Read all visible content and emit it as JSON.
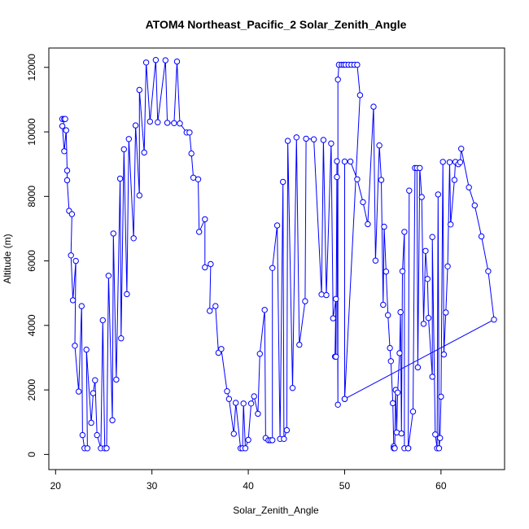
{
  "chart_data": {
    "type": "line",
    "title": "ATOM4 Northeast_Pacific_2 Solar_Zenith_Angle",
    "xlabel": "Solar_Zenith_Angle",
    "ylabel": "Altitude (m)",
    "xlim": [
      19.3,
      66.6
    ],
    "ylim": [
      -470,
      12600
    ],
    "xticks": [
      20,
      30,
      40,
      50,
      60
    ],
    "yticks": [
      0,
      2000,
      4000,
      6000,
      8000,
      10000,
      12000
    ],
    "markers": "open circles",
    "color": "#0000ff",
    "grid": false,
    "series": [
      {
        "points": [
          [
            20.7,
            10400
          ],
          [
            20.9,
            10400
          ],
          [
            21.0,
            10400
          ],
          [
            20.7,
            10180
          ],
          [
            20.9,
            9400
          ],
          [
            21.1,
            10050
          ],
          [
            21.2,
            8800
          ],
          [
            21.2,
            8500
          ],
          [
            21.4,
            7550
          ],
          [
            21.7,
            7450
          ],
          [
            21.6,
            6170
          ],
          [
            21.8,
            4780
          ],
          [
            22.1,
            6000
          ],
          [
            22.0,
            3370
          ],
          [
            22.4,
            1950
          ],
          [
            22.7,
            4600
          ],
          [
            22.8,
            600
          ],
          [
            23.0,
            190
          ],
          [
            23.3,
            190
          ],
          [
            23.2,
            3250
          ],
          [
            23.7,
            980
          ],
          [
            23.9,
            1900
          ],
          [
            24.1,
            2300
          ],
          [
            24.3,
            600
          ],
          [
            24.7,
            190
          ],
          [
            24.9,
            4160
          ],
          [
            25.1,
            190
          ],
          [
            25.3,
            190
          ],
          [
            25.5,
            5540
          ],
          [
            25.9,
            1060
          ],
          [
            26.0,
            6850
          ],
          [
            26.3,
            2320
          ],
          [
            26.7,
            8550
          ],
          [
            26.8,
            3600
          ],
          [
            27.1,
            9460
          ],
          [
            27.4,
            4970
          ],
          [
            27.6,
            9780
          ],
          [
            28.1,
            6700
          ],
          [
            28.3,
            10200
          ],
          [
            28.7,
            8030
          ],
          [
            28.7,
            11300
          ],
          [
            29.2,
            9360
          ],
          [
            29.4,
            12150
          ],
          [
            29.8,
            10320
          ],
          [
            30.4,
            12230
          ],
          [
            30.6,
            10300
          ],
          [
            31.4,
            12220
          ],
          [
            31.6,
            10280
          ],
          [
            32.3,
            10270
          ],
          [
            32.6,
            12180
          ],
          [
            32.9,
            10260
          ],
          [
            33.6,
            9980
          ],
          [
            33.9,
            9980
          ],
          [
            34.1,
            9330
          ],
          [
            34.3,
            8580
          ],
          [
            34.8,
            8530
          ],
          [
            34.9,
            6900
          ],
          [
            35.5,
            7290
          ],
          [
            35.5,
            5800
          ],
          [
            36.1,
            5900
          ],
          [
            36.0,
            4450
          ],
          [
            36.6,
            4600
          ],
          [
            36.9,
            3150
          ],
          [
            37.2,
            3270
          ],
          [
            37.8,
            1960
          ],
          [
            38.0,
            1720
          ],
          [
            38.5,
            640
          ],
          [
            38.7,
            1600
          ],
          [
            39.2,
            190
          ],
          [
            39.4,
            190
          ],
          [
            39.5,
            1580
          ],
          [
            39.7,
            190
          ],
          [
            40.0,
            450
          ],
          [
            40.3,
            1580
          ],
          [
            40.6,
            1800
          ],
          [
            41.0,
            1260
          ],
          [
            41.2,
            3120
          ],
          [
            41.7,
            4480
          ],
          [
            41.8,
            510
          ],
          [
            42.1,
            440
          ],
          [
            42.3,
            440
          ],
          [
            42.5,
            440
          ],
          [
            42.5,
            5780
          ],
          [
            43.0,
            7100
          ],
          [
            43.3,
            480
          ],
          [
            43.6,
            8450
          ],
          [
            43.7,
            480
          ],
          [
            44.0,
            750
          ],
          [
            44.1,
            9720
          ],
          [
            44.6,
            2060
          ],
          [
            45.0,
            9830
          ],
          [
            45.3,
            3400
          ],
          [
            45.9,
            4750
          ],
          [
            46.0,
            9790
          ],
          [
            46.8,
            9770
          ],
          [
            47.6,
            4960
          ],
          [
            47.8,
            9750
          ],
          [
            48.1,
            4940
          ],
          [
            48.6,
            9640
          ],
          [
            48.8,
            4220
          ],
          [
            49.1,
            4820
          ],
          [
            49.0,
            3030
          ],
          [
            49.1,
            3030
          ],
          [
            49.2,
            9090
          ],
          [
            49.2,
            8600
          ],
          [
            49.3,
            1540
          ],
          [
            49.3,
            11620
          ],
          [
            49.4,
            12080
          ],
          [
            49.7,
            12080
          ],
          [
            49.9,
            12080
          ],
          [
            50.1,
            12080
          ],
          [
            50.4,
            12080
          ],
          [
            50.7,
            12080
          ],
          [
            51.0,
            12080
          ],
          [
            51.3,
            12080
          ],
          [
            51.6,
            11140
          ],
          [
            50.0,
            1720
          ],
          [
            50.0,
            9080
          ],
          [
            50.6,
            9080
          ],
          [
            51.3,
            8530
          ],
          [
            51.9,
            7820
          ],
          [
            52.4,
            7140
          ],
          [
            53.0,
            10780
          ],
          [
            53.2,
            6010
          ],
          [
            53.6,
            9580
          ],
          [
            53.8,
            8510
          ],
          [
            54.0,
            4640
          ],
          [
            54.1,
            7060
          ],
          [
            54.3,
            5670
          ],
          [
            54.5,
            4320
          ],
          [
            54.7,
            3300
          ],
          [
            54.8,
            2890
          ],
          [
            55.0,
            1590
          ],
          [
            55.1,
            250
          ],
          [
            55.1,
            190
          ],
          [
            55.2,
            190
          ],
          [
            55.3,
            2000
          ],
          [
            55.4,
            680
          ],
          [
            55.5,
            1920
          ],
          [
            55.7,
            3140
          ],
          [
            55.8,
            4410
          ],
          [
            55.9,
            650
          ],
          [
            56.0,
            5680
          ],
          [
            56.2,
            6900
          ],
          [
            56.2,
            190
          ],
          [
            56.6,
            190
          ],
          [
            56.7,
            8180
          ],
          [
            56.6,
            190
          ],
          [
            57.1,
            1330
          ],
          [
            57.3,
            8880
          ],
          [
            57.5,
            8880
          ],
          [
            57.6,
            2700
          ],
          [
            57.8,
            8880
          ],
          [
            58.0,
            7980
          ],
          [
            58.2,
            4050
          ],
          [
            58.4,
            6310
          ],
          [
            58.6,
            5440
          ],
          [
            58.7,
            4230
          ],
          [
            59.1,
            2410
          ],
          [
            59.1,
            6740
          ],
          [
            59.4,
            620
          ],
          [
            59.6,
            190
          ],
          [
            59.7,
            8060
          ],
          [
            59.8,
            190
          ],
          [
            59.9,
            510
          ],
          [
            60.0,
            1790
          ],
          [
            60.2,
            9070
          ],
          [
            60.3,
            3100
          ],
          [
            60.5,
            4400
          ],
          [
            60.7,
            5830
          ],
          [
            60.9,
            9060
          ],
          [
            61.0,
            7130
          ],
          [
            61.4,
            8510
          ],
          [
            61.5,
            9070
          ],
          [
            61.8,
            9000
          ],
          [
            62.0,
            9060
          ],
          [
            62.1,
            9480
          ],
          [
            62.9,
            8280
          ],
          [
            63.5,
            7720
          ],
          [
            64.2,
            6760
          ],
          [
            64.9,
            5680
          ],
          [
            65.5,
            4180
          ],
          [
            50.0,
            1720
          ]
        ]
      }
    ]
  }
}
